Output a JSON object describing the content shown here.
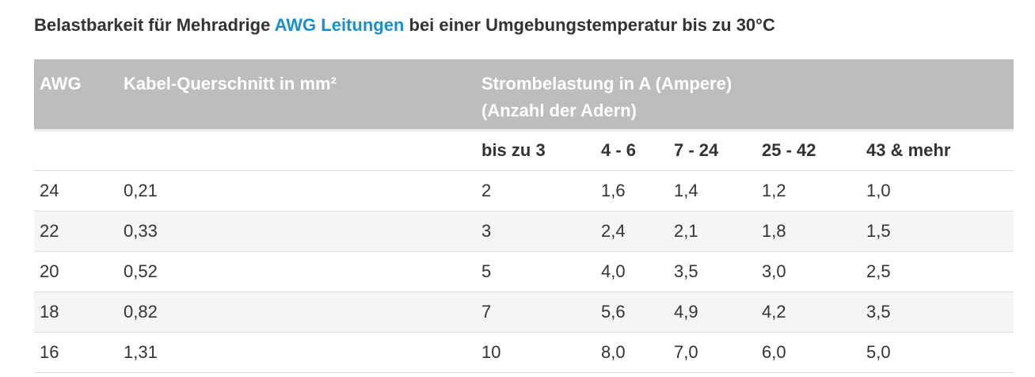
{
  "heading": {
    "prefix": "Belastbarkeit für Mehradrige",
    "link": "AWG Leitungen",
    "suffix": "bei einer Umgebungstemperatur bis zu 30°C"
  },
  "table": {
    "header": {
      "awg": "AWG",
      "querschnitt": "Kabel-Querschnitt in mm²",
      "strom_line1": "Strombelastung in A (Ampere)",
      "strom_line2": "(Anzahl der Adern)"
    },
    "subheaders": [
      "bis zu 3",
      "4 - 6",
      "7 - 24",
      "25 - 42",
      "43 & mehr"
    ],
    "rows": [
      {
        "awg": "24",
        "mm2": "0,21",
        "v": [
          "2",
          "1,6",
          "1,4",
          "1,2",
          "1,0"
        ]
      },
      {
        "awg": "22",
        "mm2": "0,33",
        "v": [
          "3",
          "2,4",
          "2,1",
          "1,8",
          "1,5"
        ]
      },
      {
        "awg": "20",
        "mm2": "0,52",
        "v": [
          "5",
          "4,0",
          "3,5",
          "3,0",
          "2,5"
        ]
      },
      {
        "awg": "18",
        "mm2": "0,82",
        "v": [
          "7",
          "5,6",
          "4,9",
          "4,2",
          "3,5"
        ]
      },
      {
        "awg": "16",
        "mm2": "1,31",
        "v": [
          "10",
          "8,0",
          "7,0",
          "6,0",
          "5,0"
        ]
      }
    ]
  },
  "colors": {
    "link": "#1a8fc9",
    "header_bg": "#bdbdbd",
    "header_text": "#ffffff",
    "row_alt_bg": "#f5f5f5",
    "text": "#333333"
  }
}
